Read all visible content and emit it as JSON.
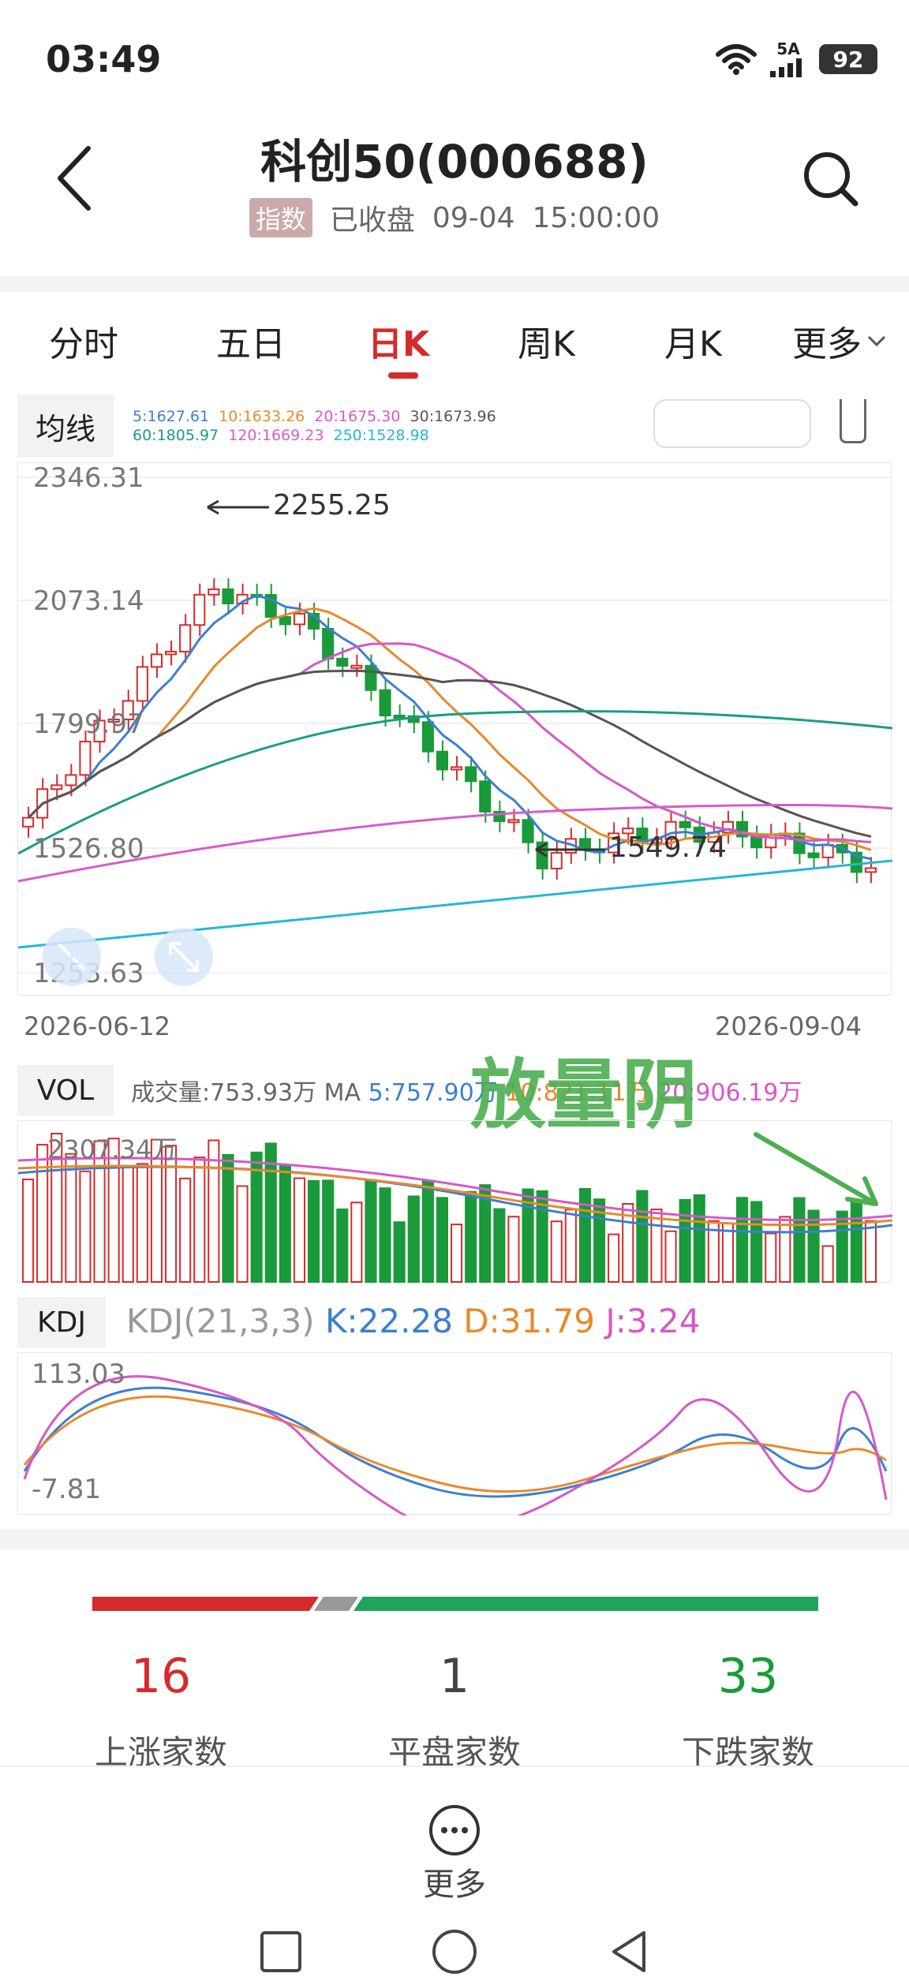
{
  "status_bar": {
    "time": "03:49",
    "network": "5A",
    "battery": "92",
    "icons": [
      "wifi-icon",
      "signal-icon",
      "battery-icon"
    ]
  },
  "header": {
    "title": "科创50(000688)",
    "badge": "指数",
    "market_status": "已收盘",
    "date": "09-04",
    "clock": "15:00:00"
  },
  "tabs": [
    {
      "label": "分时",
      "active": false
    },
    {
      "label": "五日",
      "active": false
    },
    {
      "label": "日K",
      "active": true
    },
    {
      "label": "周K",
      "active": false
    },
    {
      "label": "月K",
      "active": false
    },
    {
      "label": "更多",
      "active": false
    }
  ],
  "ma_panel": {
    "title": "均线",
    "row1": [
      {
        "text": "5:1627.61",
        "color": "#3c7fd0"
      },
      {
        "text": "10:1633.26",
        "color": "#e8892c"
      },
      {
        "text": "20:1675.30",
        "color": "#d658c8"
      },
      {
        "text": "30:1673.96",
        "color": "#555555"
      }
    ],
    "row2": [
      {
        "text": "60:1805.97",
        "color": "#1a9c86"
      },
      {
        "text": "120:1669.23",
        "color": "#d65cc9"
      },
      {
        "text": "250:1528.98",
        "color": "#26b7d6"
      }
    ]
  },
  "price_chart": {
    "y_labels": [
      "2346.31",
      "2073.14",
      "1799.97",
      "1526.80",
      "1253.63"
    ],
    "high_label": "2255.25",
    "low_label": "1549.74",
    "start_date": "2026-06-12",
    "end_date": "2026-09-04"
  },
  "vol_panel": {
    "title": "VOL",
    "prefix": "成交量:753.93万 MA ",
    "ma5": "5:757.90万",
    "ma10": "10:821.11万",
    "ma20": "20:906.19万",
    "max_label": "2307.34万",
    "annotation": "放量阴"
  },
  "kdj_panel": {
    "title": "KDJ",
    "params": "KDJ(21,3,3)",
    "k": "K:22.28",
    "d": "D:31.79",
    "j": "J:3.24",
    "top_label": "113.03",
    "bottom_label": "-7.81"
  },
  "breadth": {
    "up_count": "16",
    "up_label": "上涨家数",
    "flat_count": "1",
    "flat_label": "平盘家数",
    "down_count": "33",
    "down_label": "下跌家数"
  },
  "more": {
    "label": "更多"
  },
  "colors": {
    "up": "#d62b2b",
    "down": "#1a9a3a",
    "active_tab": "#d62b2b",
    "annotation": "#4caf50"
  }
}
